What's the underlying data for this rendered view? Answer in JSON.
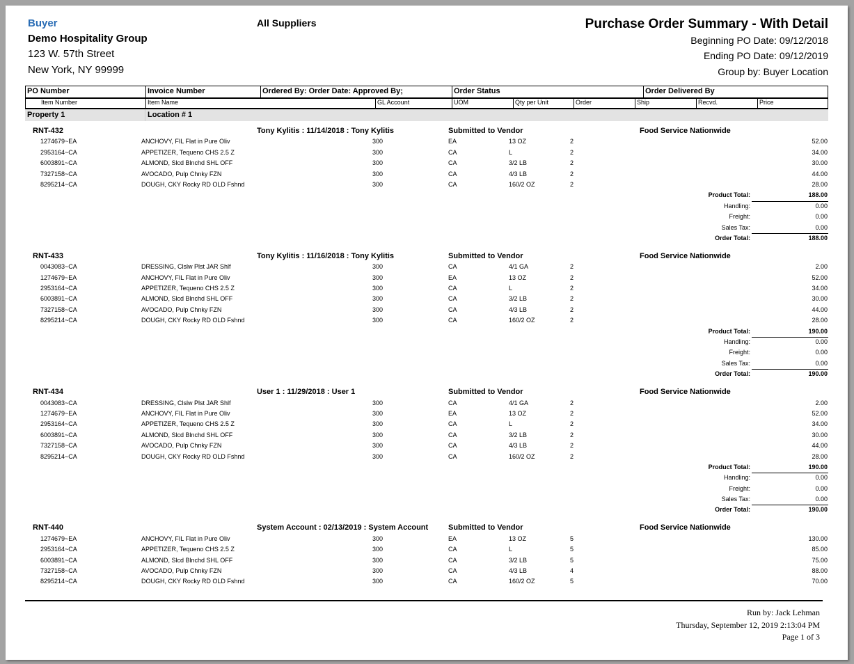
{
  "header": {
    "buyer_label": "Buyer",
    "organization": "Demo Hospitality Group",
    "address_line1": "123 W. 57th Street",
    "address_line2": "New York, NY 99999",
    "supplier_filter": "All Suppliers",
    "report_title": "Purchase Order Summary - With Detail",
    "beginning_date": "Beginning PO Date: 09/12/2018",
    "ending_date": "Ending PO Date: 09/12/2019",
    "group_by": "Group by: Buyer Location"
  },
  "columns": {
    "row1": [
      "PO Number",
      "Invoice Number",
      "Ordered By: Order Date: Approved By;",
      "Order Status",
      "Order Delivered By"
    ],
    "row2": [
      "Item Number",
      "Item Name",
      "GL Account",
      "UOM",
      "Qty per Unit",
      "Order",
      "Ship",
      "Recvd.",
      "Price"
    ]
  },
  "group": {
    "property": "Property 1",
    "location": "Location # 1"
  },
  "totals_labels": {
    "product": "Product Total:",
    "handling": "Handling:",
    "freight": "Freight:",
    "tax": "Sales Tax:",
    "order": "Order Total:"
  },
  "orders": [
    {
      "po": "RNT-432",
      "ordered": "Tony Kylitis : 11/14/2018 : Tony Kylitis",
      "status": "Submitted to Vendor",
      "vendor": "Food Service Nationwide",
      "items": [
        [
          "1274679~EA",
          "ANCHOVY, FIL Flat in Pure Oliv",
          "300",
          "EA",
          "13 OZ",
          "2",
          "52.00"
        ],
        [
          "2953164~CA",
          "APPETIZER, Tequeno CHS 2.5 Z",
          "300",
          "CA",
          "L",
          "2",
          "34.00"
        ],
        [
          "6003891~CA",
          "ALMOND, Slcd Blnchd SHL OFF",
          "300",
          "CA",
          "3/2 LB",
          "2",
          "30.00"
        ],
        [
          "7327158~CA",
          "AVOCADO, Pulp Chnky FZN",
          "300",
          "CA",
          "4/3 LB",
          "2",
          "44.00"
        ],
        [
          "8295214~CA",
          "DOUGH, CKY Rocky RD OLD Fshnd",
          "300",
          "CA",
          "160/2 OZ",
          "2",
          "28.00"
        ]
      ],
      "totals": {
        "product": "188.00",
        "handling": "0.00",
        "freight": "0.00",
        "tax": "0.00",
        "order": "188.00"
      }
    },
    {
      "po": "RNT-433",
      "ordered": "Tony Kylitis : 11/16/2018 : Tony Kylitis",
      "status": "Submitted to Vendor",
      "vendor": "Food Service Nationwide",
      "items": [
        [
          "0043083~CA",
          "DRESSING, Clslw Plst JAR Shlf",
          "300",
          "CA",
          "4/1 GA",
          "2",
          "2.00"
        ],
        [
          "1274679~EA",
          "ANCHOVY, FIL Flat in Pure Oliv",
          "300",
          "EA",
          "13 OZ",
          "2",
          "52.00"
        ],
        [
          "2953164~CA",
          "APPETIZER, Tequeno CHS 2.5 Z",
          "300",
          "CA",
          "L",
          "2",
          "34.00"
        ],
        [
          "6003891~CA",
          "ALMOND, Slcd Blnchd SHL OFF",
          "300",
          "CA",
          "3/2 LB",
          "2",
          "30.00"
        ],
        [
          "7327158~CA",
          "AVOCADO, Pulp Chnky FZN",
          "300",
          "CA",
          "4/3 LB",
          "2",
          "44.00"
        ],
        [
          "8295214~CA",
          "DOUGH, CKY Rocky RD OLD Fshnd",
          "300",
          "CA",
          "160/2 OZ",
          "2",
          "28.00"
        ]
      ],
      "totals": {
        "product": "190.00",
        "handling": "0.00",
        "freight": "0.00",
        "tax": "0.00",
        "order": "190.00"
      }
    },
    {
      "po": "RNT-434",
      "ordered": "User 1 : 11/29/2018 : User 1",
      "status": "Submitted to Vendor",
      "vendor": "Food Service Nationwide",
      "items": [
        [
          "0043083~CA",
          "DRESSING, Clslw Plst JAR Shlf",
          "300",
          "CA",
          "4/1 GA",
          "2",
          "2.00"
        ],
        [
          "1274679~EA",
          "ANCHOVY, FIL Flat in Pure Oliv",
          "300",
          "EA",
          "13 OZ",
          "2",
          "52.00"
        ],
        [
          "2953164~CA",
          "APPETIZER, Tequeno CHS 2.5 Z",
          "300",
          "CA",
          "L",
          "2",
          "34.00"
        ],
        [
          "6003891~CA",
          "ALMOND, Slcd Blnchd SHL OFF",
          "300",
          "CA",
          "3/2 LB",
          "2",
          "30.00"
        ],
        [
          "7327158~CA",
          "AVOCADO, Pulp Chnky FZN",
          "300",
          "CA",
          "4/3 LB",
          "2",
          "44.00"
        ],
        [
          "8295214~CA",
          "DOUGH, CKY Rocky RD OLD Fshnd",
          "300",
          "CA",
          "160/2 OZ",
          "2",
          "28.00"
        ]
      ],
      "totals": {
        "product": "190.00",
        "handling": "0.00",
        "freight": "0.00",
        "tax": "0.00",
        "order": "190.00"
      }
    },
    {
      "po": "RNT-440",
      "ordered": "System Account : 02/13/2019 : System Account",
      "status": "Submitted to Vendor",
      "vendor": "Food Service Nationwide",
      "items": [
        [
          "1274679~EA",
          "ANCHOVY, FIL Flat in Pure Oliv",
          "300",
          "EA",
          "13 OZ",
          "5",
          "130.00"
        ],
        [
          "2953164~CA",
          "APPETIZER, Tequeno CHS 2.5 Z",
          "300",
          "CA",
          "L",
          "5",
          "85.00"
        ],
        [
          "6003891~CA",
          "ALMOND, Slcd Blnchd SHL OFF",
          "300",
          "CA",
          "3/2 LB",
          "5",
          "75.00"
        ],
        [
          "7327158~CA",
          "AVOCADO, Pulp Chnky FZN",
          "300",
          "CA",
          "4/3 LB",
          "4",
          "88.00"
        ],
        [
          "8295214~CA",
          "DOUGH, CKY Rocky RD OLD Fshnd",
          "300",
          "CA",
          "160/2 OZ",
          "5",
          "70.00"
        ]
      ]
    }
  ],
  "footer": {
    "run_by": "Run by: Jack Lehman",
    "run_date": "Thursday, September 12,  2019   2:13:04 PM",
    "page": "Page 1 of 3"
  }
}
